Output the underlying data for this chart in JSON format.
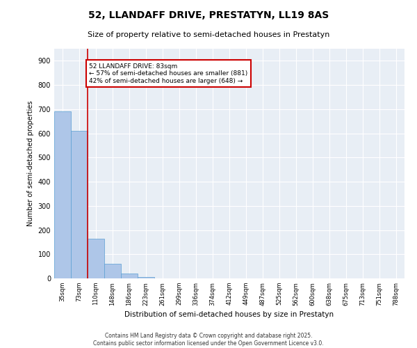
{
  "title_line1": "52, LLANDAFF DRIVE, PRESTATYN, LL19 8AS",
  "title_line2": "Size of property relative to semi-detached houses in Prestatyn",
  "xlabel": "Distribution of semi-detached houses by size in Prestatyn",
  "ylabel": "Number of semi-detached properties",
  "categories": [
    "35sqm",
    "73sqm",
    "110sqm",
    "148sqm",
    "186sqm",
    "223sqm",
    "261sqm",
    "299sqm",
    "336sqm",
    "374sqm",
    "412sqm",
    "449sqm",
    "487sqm",
    "525sqm",
    "562sqm",
    "600sqm",
    "638sqm",
    "675sqm",
    "713sqm",
    "751sqm",
    "788sqm"
  ],
  "values": [
    690,
    610,
    165,
    60,
    20,
    5,
    0,
    0,
    0,
    0,
    0,
    0,
    0,
    0,
    0,
    0,
    0,
    0,
    0,
    0,
    0
  ],
  "bar_color": "#aec6e8",
  "bar_edge_color": "#5a9fd4",
  "property_line_x": 1.5,
  "annotation_text": "52 LLANDAFF DRIVE: 83sqm\n← 57% of semi-detached houses are smaller (881)\n42% of semi-detached houses are larger (648) →",
  "annotation_box_color": "#ffffff",
  "annotation_box_edge": "#cc0000",
  "vline_color": "#cc0000",
  "ylim": [
    0,
    950
  ],
  "yticks": [
    0,
    100,
    200,
    300,
    400,
    500,
    600,
    700,
    800,
    900
  ],
  "bg_color": "#e8eef5",
  "grid_color": "#ffffff",
  "footer_line1": "Contains HM Land Registry data © Crown copyright and database right 2025.",
  "footer_line2": "Contains public sector information licensed under the Open Government Licence v3.0."
}
